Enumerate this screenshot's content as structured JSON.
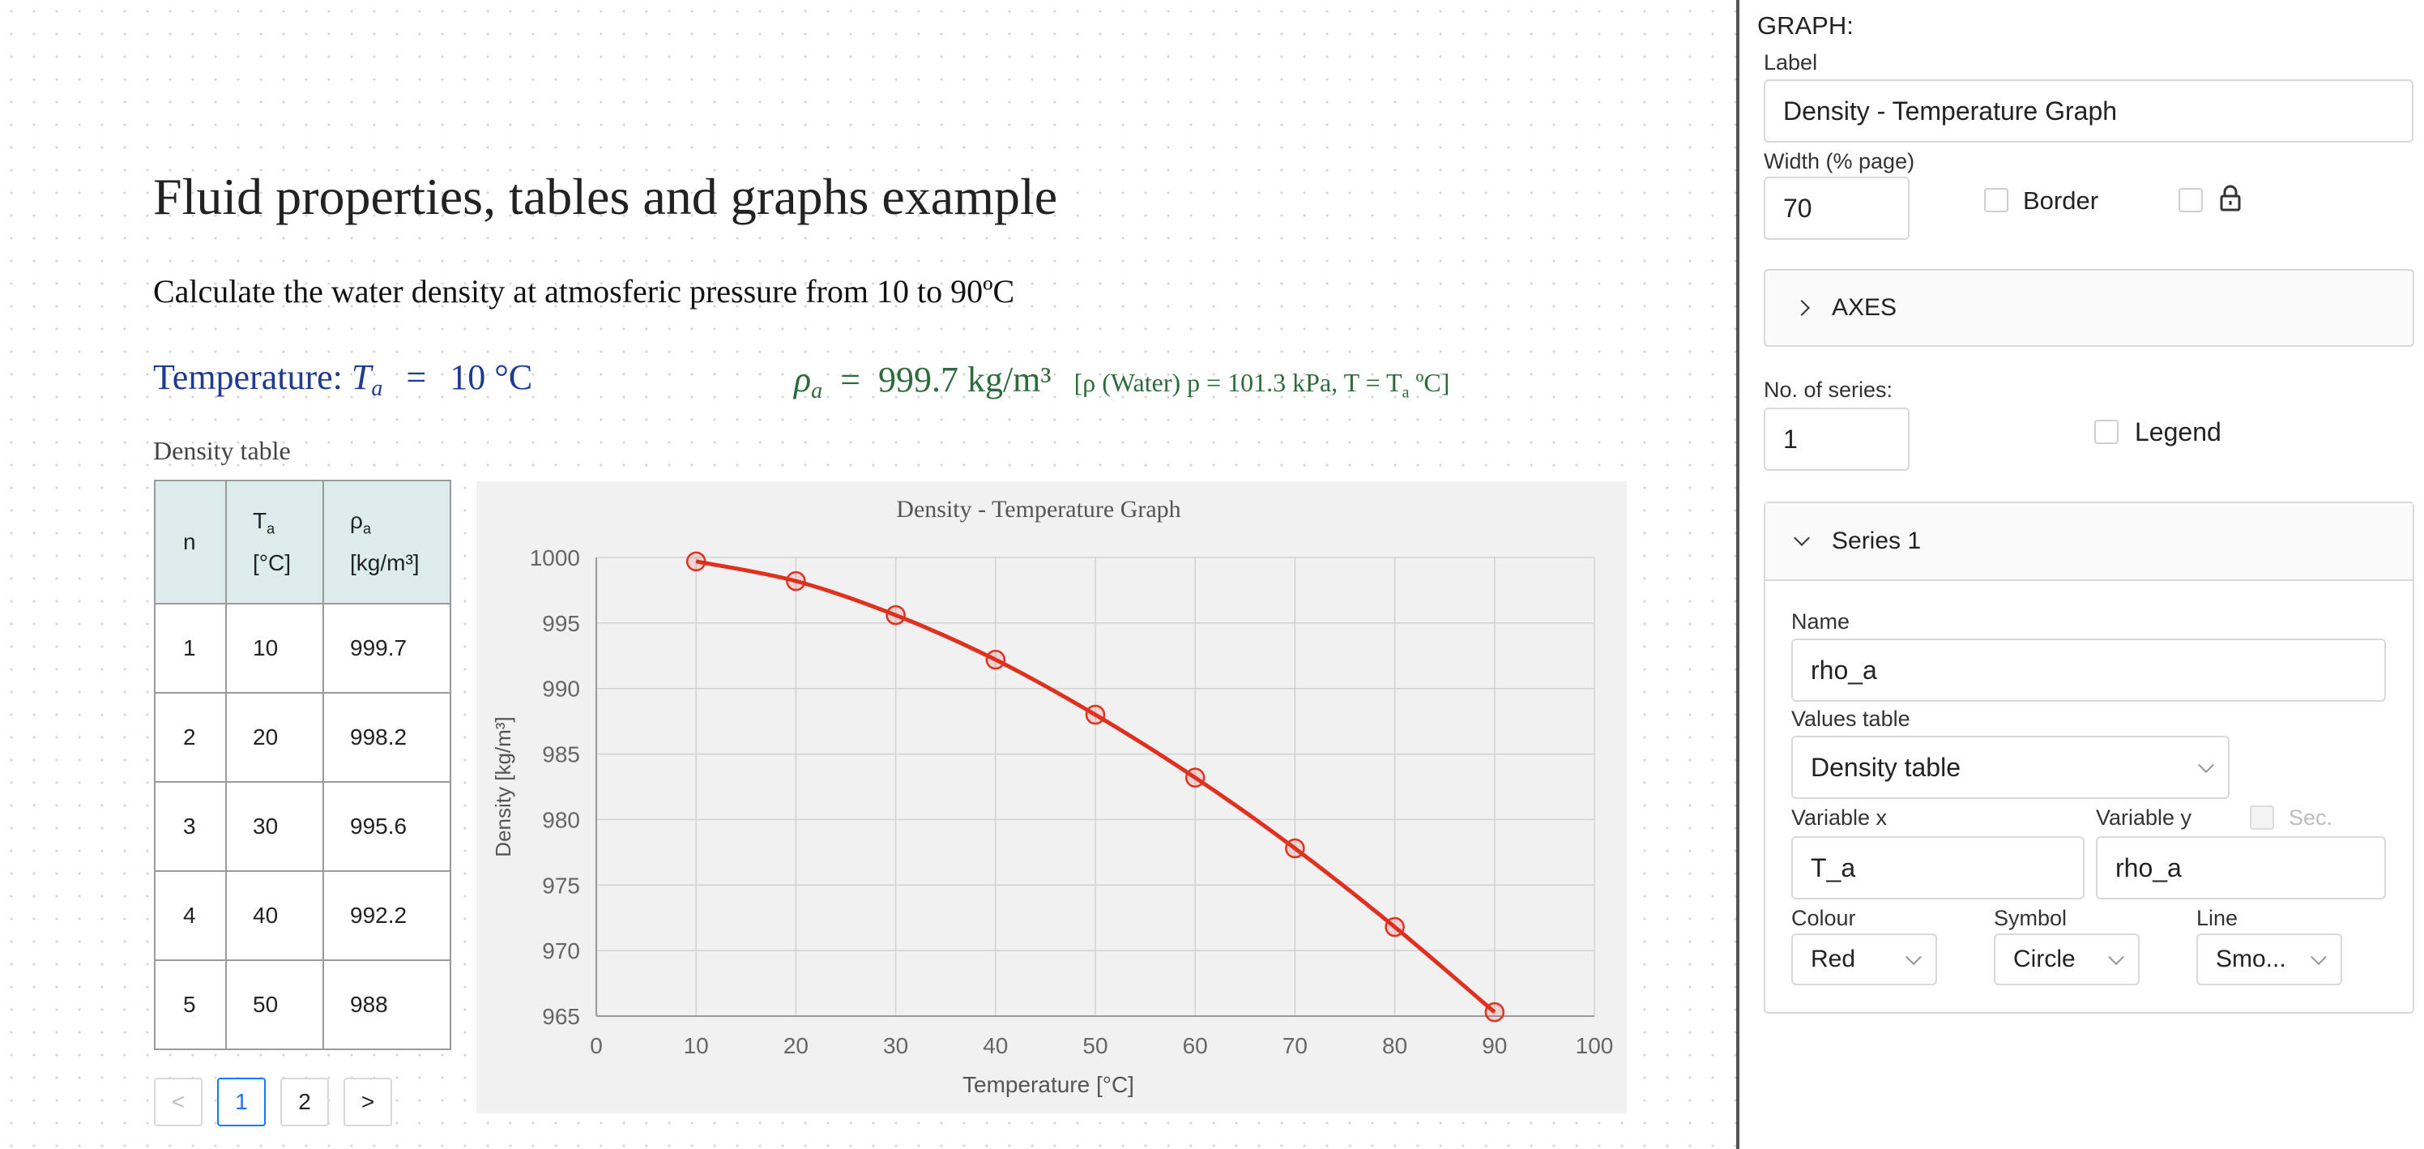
{
  "document": {
    "title": "Fluid properties, tables and graphs example",
    "subtitle": "Calculate the water density at atmosferic pressure from 10 to 90ºC",
    "temperature": {
      "label": "Temperature:",
      "symbol": "T",
      "sub": "a",
      "eq": "=",
      "value": "10 °C"
    },
    "density": {
      "symbol": "ρ",
      "sub": "a",
      "eq": "=",
      "value": "999.7 kg/m³",
      "ref_prefix": "[ρ (Water) p = 101.3 kPa, T = T",
      "ref_sub": "a",
      "ref_suffix": " ºC]"
    },
    "table": {
      "caption": "Density table",
      "headers": [
        {
          "main": "n",
          "sub": "",
          "unit": ""
        },
        {
          "main": "T",
          "sub": "a",
          "unit": "[°C]"
        },
        {
          "main": "ρ",
          "sub": "a",
          "unit": "[kg/m³]"
        }
      ],
      "rows": [
        [
          "1",
          "10",
          "999.7"
        ],
        [
          "2",
          "20",
          "998.2"
        ],
        [
          "3",
          "30",
          "995.6"
        ],
        [
          "4",
          "40",
          "992.2"
        ],
        [
          "5",
          "50",
          "988"
        ]
      ]
    },
    "pagination": {
      "prev": "<",
      "pages": [
        "1",
        "2"
      ],
      "active_page": "1",
      "next": ">"
    }
  },
  "chart_data": {
    "type": "line",
    "title": "Density - Temperature Graph",
    "xlabel": "Temperature [°C]",
    "ylabel": "Density [kg/m³]",
    "xlim": [
      0,
      100
    ],
    "ylim": [
      965,
      1000
    ],
    "xticks": [
      0,
      10,
      20,
      30,
      40,
      50,
      60,
      70,
      80,
      90,
      100
    ],
    "yticks": [
      965,
      970,
      975,
      980,
      985,
      990,
      995,
      1000
    ],
    "grid": true,
    "series": [
      {
        "name": "rho_a",
        "color": "#e03020",
        "marker": "circle",
        "line": "smooth",
        "x": [
          10,
          20,
          30,
          40,
          50,
          60,
          70,
          80,
          90
        ],
        "y": [
          999.7,
          998.2,
          995.6,
          992.2,
          988.0,
          983.2,
          977.8,
          971.8,
          965.3
        ]
      }
    ]
  },
  "panel": {
    "section_title": "GRAPH:",
    "label_label": "Label",
    "label_value": "Density - Temperature Graph",
    "width_label": "Width (% page)",
    "width_value": "70",
    "border_label": "Border",
    "lock_icon": "lock-icon",
    "axes_label": "AXES",
    "series_count_label": "No. of series:",
    "series_count_value": "1",
    "legend_label": "Legend",
    "series_header": "Series 1",
    "name_label": "Name",
    "name_value": "rho_a",
    "values_table_label": "Values table",
    "values_table_value": "Density table",
    "var_x_label": "Variable x",
    "var_x_value": "T_a",
    "var_y_label": "Variable y",
    "var_y_value": "rho_a",
    "sec_label": "Sec.",
    "colour_label": "Colour",
    "colour_value": "Red",
    "symbol_label": "Symbol",
    "symbol_value": "Circle",
    "line_label": "Line",
    "line_value": "Smo..."
  }
}
